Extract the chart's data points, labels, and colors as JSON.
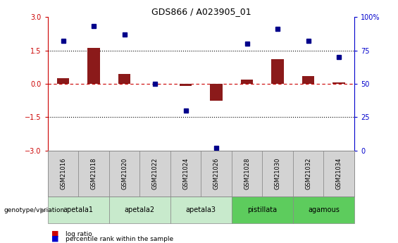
{
  "title": "GDS866 / A023905_01",
  "samples": [
    "GSM21016",
    "GSM21018",
    "GSM21020",
    "GSM21022",
    "GSM21024",
    "GSM21026",
    "GSM21028",
    "GSM21030",
    "GSM21032",
    "GSM21034"
  ],
  "log_ratio": [
    0.25,
    1.62,
    0.45,
    0.0,
    -0.08,
    -0.75,
    0.2,
    1.1,
    0.35,
    0.05
  ],
  "percentile_rank": [
    82,
    93,
    87,
    50,
    30,
    2,
    80,
    91,
    82,
    70
  ],
  "groups": [
    {
      "name": "apetala1",
      "indices": [
        0,
        1
      ],
      "color": "#c8eacc"
    },
    {
      "name": "apetala2",
      "indices": [
        2,
        3
      ],
      "color": "#c8eacc"
    },
    {
      "name": "apetala3",
      "indices": [
        4,
        5
      ],
      "color": "#c8eacc"
    },
    {
      "name": "pistillata",
      "indices": [
        6,
        7
      ],
      "color": "#5dcc5d"
    },
    {
      "name": "agamous",
      "indices": [
        8,
        9
      ],
      "color": "#5dcc5d"
    }
  ],
  "ylim_left": [
    -3,
    3
  ],
  "ylim_right": [
    0,
    100
  ],
  "yticks_left": [
    -3,
    -1.5,
    0,
    1.5,
    3
  ],
  "yticks_right": [
    0,
    25,
    50,
    75,
    100
  ],
  "bar_color": "#8B1A1A",
  "dot_color": "#00008B",
  "legend_bar_color": "#cc0000",
  "legend_dot_color": "#0000cc",
  "zero_line_color": "#cc0000",
  "dotted_line_color": "#000000",
  "axis_color_left": "#cc0000",
  "axis_color_right": "#0000cc",
  "sample_box_color": "#d3d3d3",
  "sample_box_edge": "#888888"
}
